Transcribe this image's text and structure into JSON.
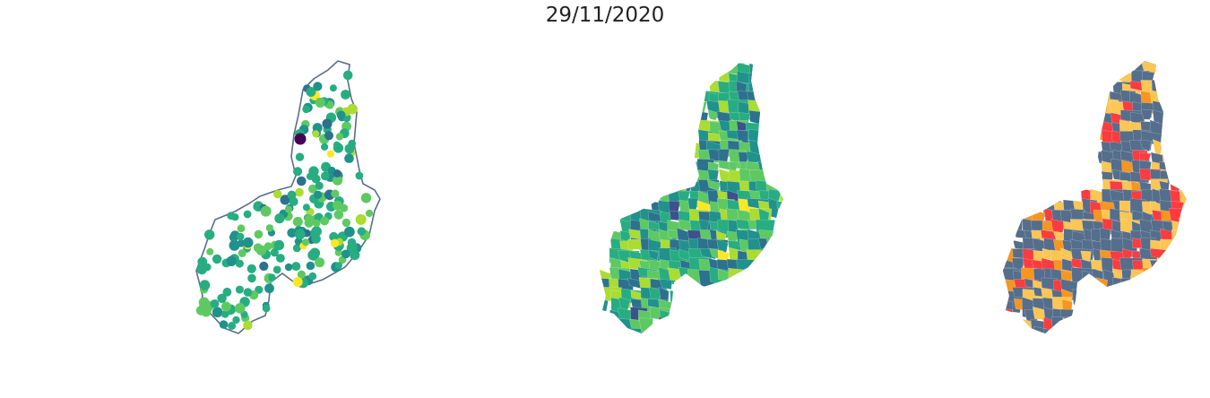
{
  "figure": {
    "title": "29/11/2020"
  },
  "colors": {
    "outline": "#5a6e86",
    "viridis": [
      "#440154",
      "#3b528b",
      "#2c728e",
      "#21918c",
      "#27ad81",
      "#5ec962",
      "#aadc32",
      "#fde725"
    ],
    "risk": [
      "#546e8c",
      "#fcc654",
      "#f79520",
      "#fa3c40"
    ]
  },
  "panels": [
    {
      "id": "points-map",
      "kind": "scatter-points",
      "description_name": "municipality-points"
    },
    {
      "id": "choropleth-viridis",
      "kind": "choropleth",
      "description_name": "viridis-regions"
    },
    {
      "id": "choropleth-risk",
      "kind": "choropleth",
      "description_name": "risk-regions"
    }
  ]
}
